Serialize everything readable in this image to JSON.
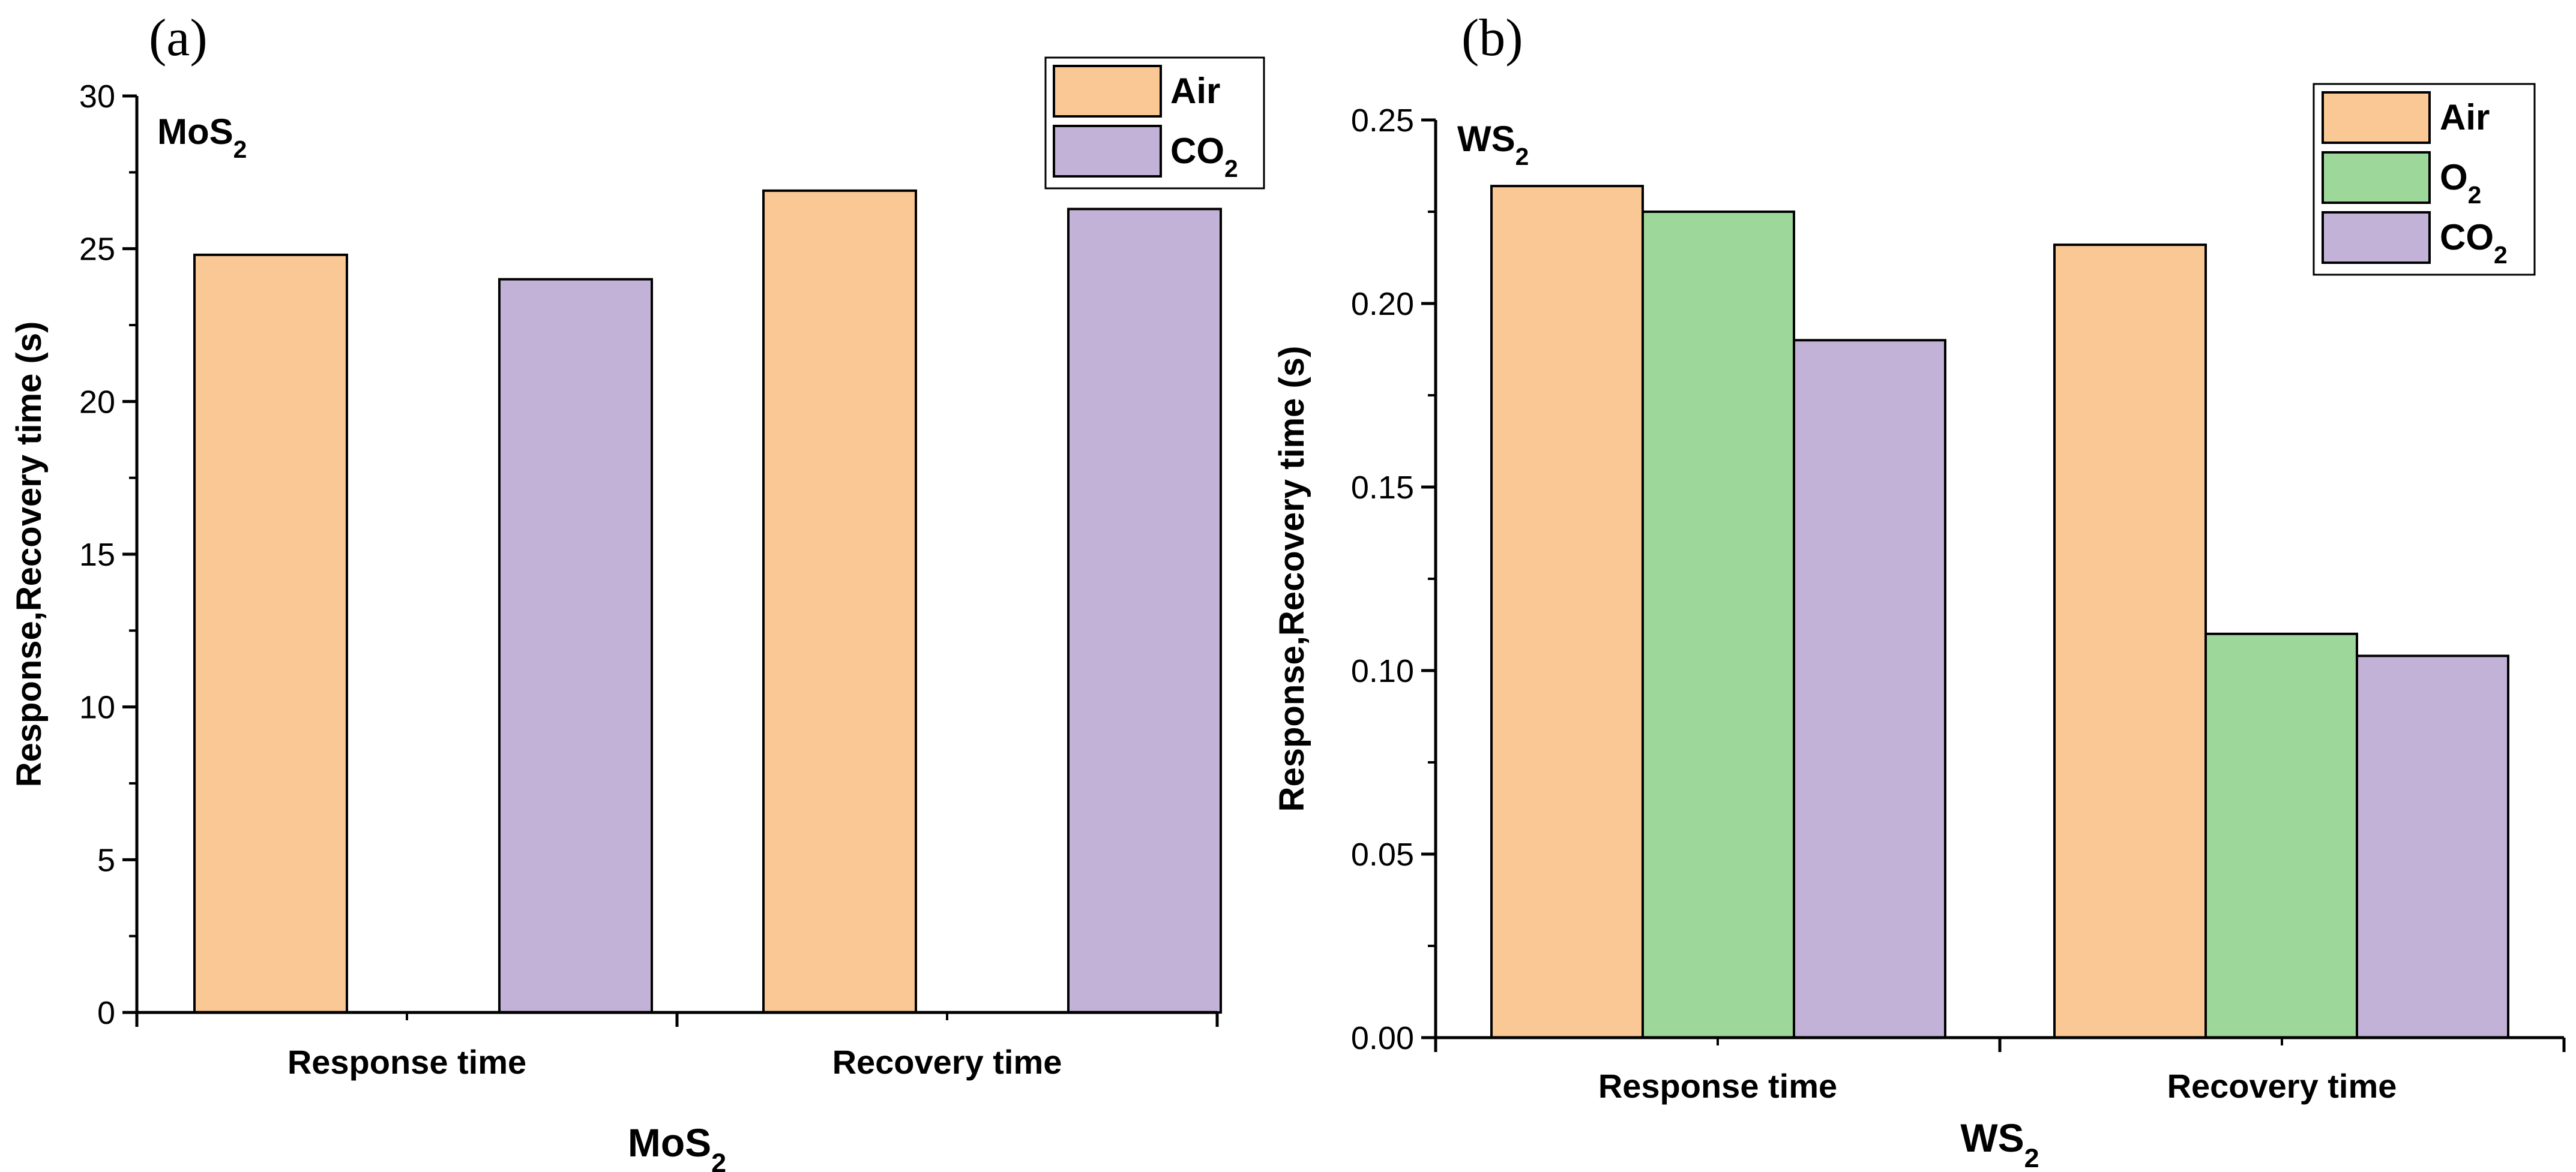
{
  "chart_data": [
    {
      "type": "bar",
      "panel_label": "(a)",
      "inplot_label": "MoS2",
      "xlabel": "MoS2",
      "ylabel": "Response,Recovery time (s)",
      "categories": [
        "Response time",
        "Recovery time"
      ],
      "series": [
        {
          "name": "Air",
          "color": "#F9C895",
          "values": [
            24.8,
            26.9
          ]
        },
        {
          "name": "CO2",
          "color": "#C3B2D7",
          "values": [
            24.0,
            26.3
          ]
        }
      ],
      "ylim": [
        0,
        30
      ],
      "yticks": [
        0,
        5,
        10,
        15,
        20,
        25,
        30
      ],
      "ytick_labels": [
        "0",
        "5",
        "10",
        "15",
        "20",
        "25",
        "30"
      ],
      "grid": false,
      "legend_position": "top-right"
    },
    {
      "type": "bar",
      "panel_label": "(b)",
      "inplot_label": "WS2",
      "xlabel": "WS2",
      "ylabel": "Response,Recovery time (s)",
      "categories": [
        "Response time",
        "Recovery time"
      ],
      "series": [
        {
          "name": "Air",
          "color": "#F9C895",
          "values": [
            0.232,
            0.216
          ]
        },
        {
          "name": "O2",
          "color": "#9DD79A",
          "values": [
            0.225,
            0.11
          ]
        },
        {
          "name": "CO2",
          "color": "#C3B2D7",
          "values": [
            0.19,
            0.104
          ]
        }
      ],
      "ylim": [
        0,
        0.25
      ],
      "yticks": [
        0,
        0.05,
        0.1,
        0.15,
        0.2,
        0.25
      ],
      "ytick_labels": [
        "0.00",
        "0.05",
        "0.10",
        "0.15",
        "0.20",
        "0.25"
      ],
      "grid": false,
      "legend_position": "top-right"
    }
  ]
}
